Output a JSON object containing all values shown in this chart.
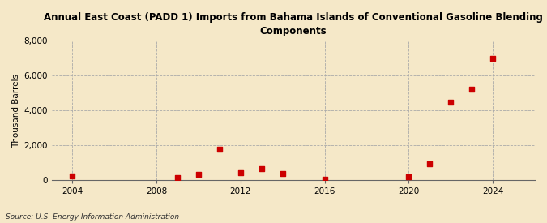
{
  "title_line1": "Annual East Coast (PADD 1) Imports from Bahama Islands of Conventional Gasoline Blending",
  "title_line2": "Components",
  "ylabel": "Thousand Barrels",
  "source": "Source: U.S. Energy Information Administration",
  "background_color": "#f5e8c8",
  "plot_bg_color": "#f5e8c8",
  "marker_color": "#cc0000",
  "years": [
    2004,
    2009,
    2010,
    2011,
    2012,
    2013,
    2014,
    2016,
    2020,
    2021,
    2022,
    2023,
    2024
  ],
  "values": [
    220,
    110,
    310,
    1750,
    410,
    650,
    360,
    55,
    155,
    900,
    4450,
    5200,
    6980
  ],
  "xlim": [
    2003,
    2026
  ],
  "ylim": [
    0,
    8000
  ],
  "yticks": [
    0,
    2000,
    4000,
    6000,
    8000
  ],
  "xticks": [
    2004,
    2008,
    2012,
    2016,
    2020,
    2024
  ],
  "grid_color": "#aaaaaa",
  "title_fontsize": 8.5,
  "ylabel_fontsize": 7.5,
  "tick_fontsize": 7.5,
  "source_fontsize": 6.5
}
